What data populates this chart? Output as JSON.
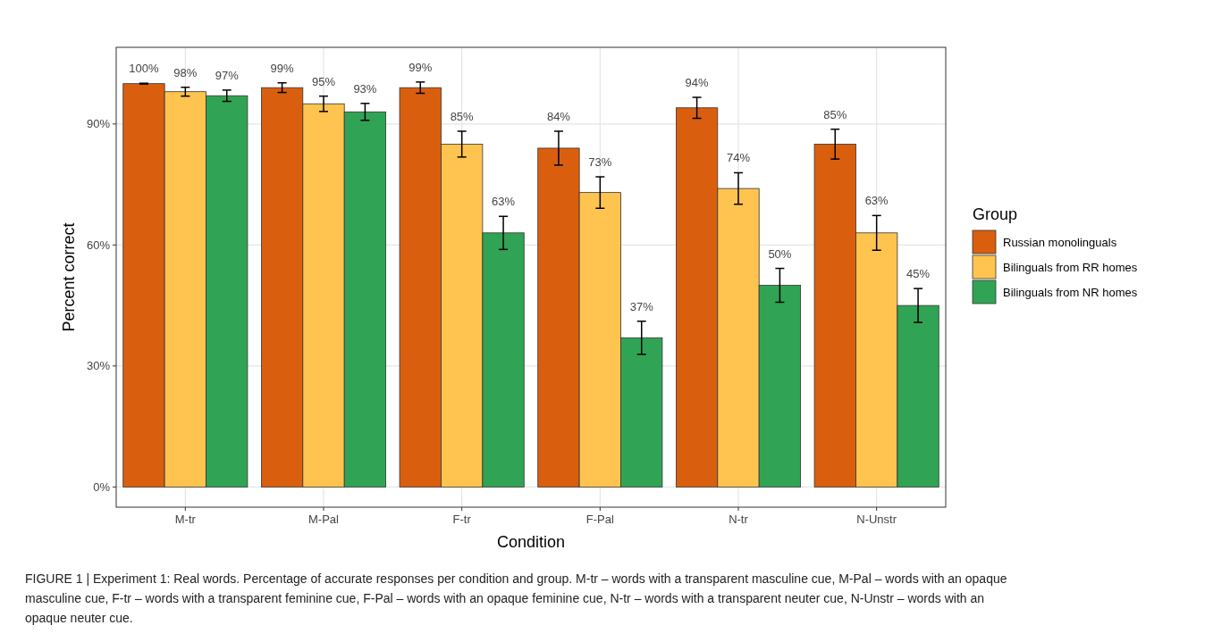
{
  "chart_data": {
    "type": "bar",
    "xlabel": "Condition",
    "ylabel": "Percent correct",
    "legend_title": "Group",
    "legend": "right",
    "grid": true,
    "categories": [
      "M-tr",
      "M-Pal",
      "F-tr",
      "F-Pal",
      "N-tr",
      "N-Unstr"
    ],
    "ylim": [
      -5,
      109
    ],
    "yticks": [
      {
        "value": 0,
        "label": "0%"
      },
      {
        "value": 30,
        "label": "30%"
      },
      {
        "value": 60,
        "label": "60%"
      },
      {
        "value": 90,
        "label": "90%"
      }
    ],
    "series": [
      {
        "name": "Russian monolinguals",
        "color": "#d95f0e",
        "values": [
          100,
          99,
          99,
          84,
          94,
          85
        ],
        "errors": [
          0.1,
          1.2,
          1.4,
          4.2,
          2.6,
          3.7
        ],
        "value_labels": [
          "100%",
          "99%",
          "99%",
          "84%",
          "94%",
          "85%"
        ]
      },
      {
        "name": "Bilinguals from RR homes",
        "color": "#fec44f",
        "values": [
          98,
          95,
          85,
          73,
          74,
          63
        ],
        "errors": [
          1.1,
          1.9,
          3.2,
          3.9,
          3.9,
          4.3
        ],
        "value_labels": [
          "98%",
          "95%",
          "85%",
          "73%",
          "74%",
          "63%"
        ]
      },
      {
        "name": "Bilinguals from NR homes",
        "color": "#31a354",
        "values": [
          97,
          93,
          63,
          37,
          50,
          45
        ],
        "errors": [
          1.4,
          2.1,
          4.1,
          4.1,
          4.2,
          4.2
        ],
        "value_labels": [
          "97%",
          "93%",
          "63%",
          "37%",
          "50%",
          "45%"
        ]
      }
    ],
    "annotations": [
      "FIGURE 1 | Experiment 1: Real words. Percentage of accurate responses per condition and group. M-tr – words with a transparent masculine cue, M-Pal – words with an opaque masculine cue, F-tr – words with a transparent feminine cue, F-Pal – words with an opaque feminine cue, N-tr – words with a transparent neuter cue, N-Unstr – words with an opaque neuter cue."
    ]
  }
}
